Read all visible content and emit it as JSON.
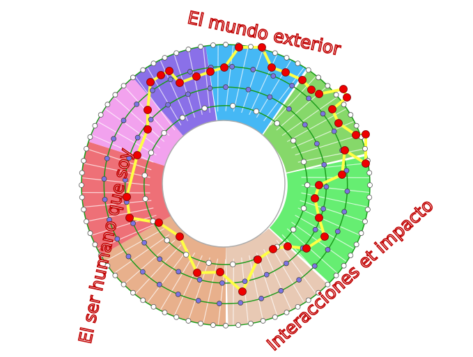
{
  "labels": {
    "top": "El mundo exterior",
    "left": "El ser humano que soy",
    "bottom_right": "Interacciones et impacto"
  },
  "sectors": [
    {
      "from": -8,
      "to": 35,
      "color": "#45b8f5"
    },
    {
      "from": 35,
      "to": 78,
      "color": "#86d86a"
    },
    {
      "from": 78,
      "to": 135,
      "color": "#66ee72"
    },
    {
      "from": 135,
      "to": 180,
      "color": "#e8c9b4"
    },
    {
      "from": 180,
      "to": 240,
      "color": "#e8b08c"
    },
    {
      "from": 240,
      "to": 288,
      "color": "#ee7077"
    },
    {
      "from": 288,
      "to": 320,
      "color": "#f2a2ee"
    },
    {
      "from": 320,
      "to": 352,
      "color": "#8a70e8"
    }
  ],
  "colors": {
    "ring_line": "#1a9a1a",
    "path": "#ffff44",
    "key_node": "#ee0000",
    "inner_node": "#7b74e4",
    "outer_node": "#ffffff",
    "label": "#c00000"
  }
}
